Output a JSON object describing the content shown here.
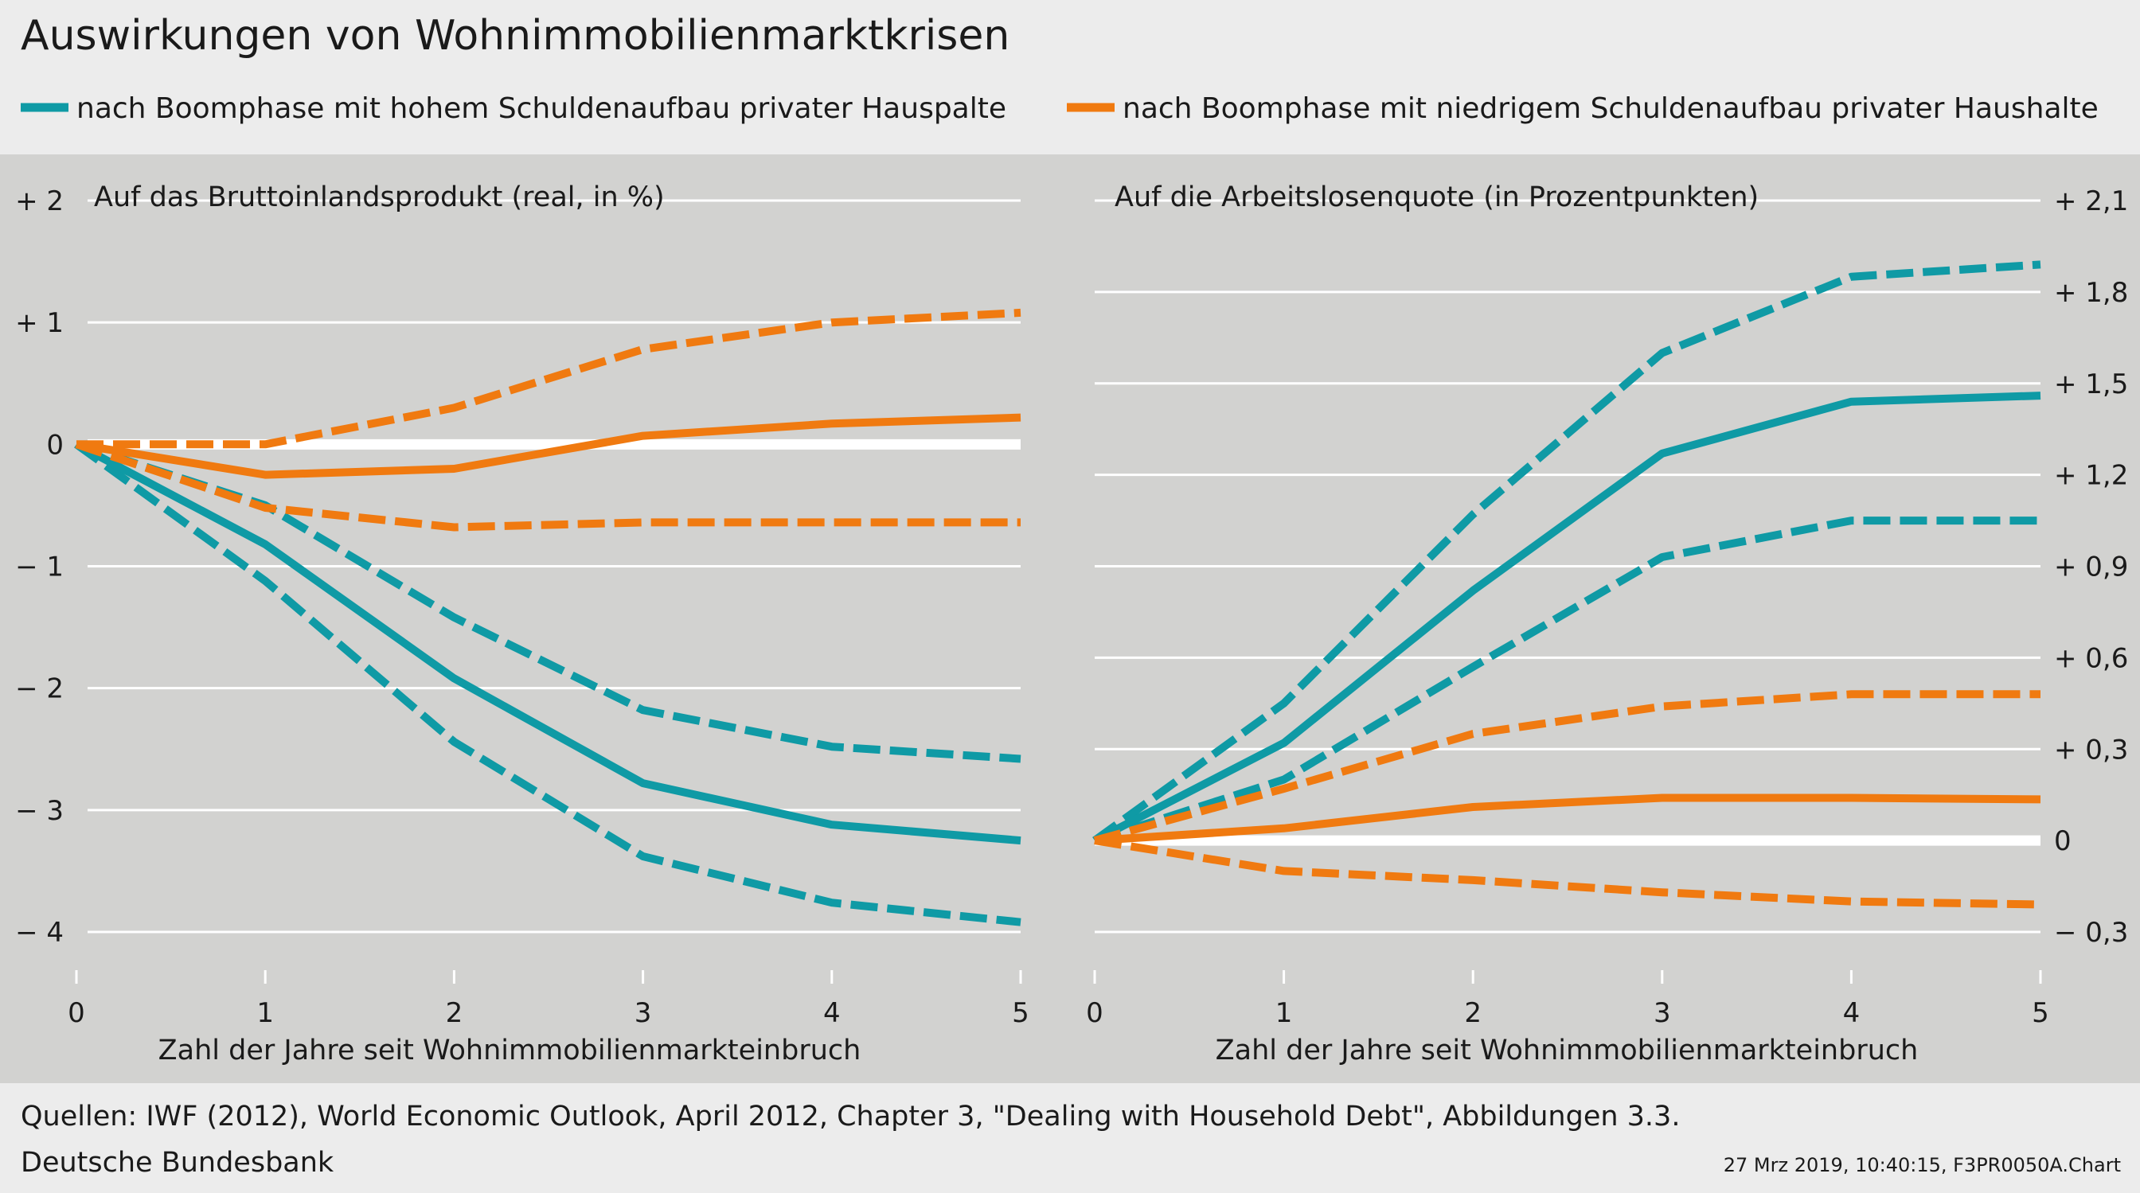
{
  "title": "Auswirkungen von Wohnimmobilienmarktkrisen",
  "legend": [
    {
      "label": "nach Boomphase mit hohem Schuldenaufbau privater Hauspalte",
      "color": "#0f9aa5"
    },
    {
      "label": "nach Boomphase mit niedrigem Schuldenaufbau privater Haushalte",
      "color": "#f07a10"
    }
  ],
  "colors": {
    "teal": "#0f9aa5",
    "orange": "#f07a10",
    "panel_bg": "#d2d2d0",
    "page_bg": "#ececec"
  },
  "chart_data": [
    {
      "type": "line",
      "title": "Auf das Bruttoinlandsprodukt (real, in %)",
      "xlabel": "Zahl der Jahre seit Wohnimmobilienmarkteinbruch",
      "ylabel": "",
      "x": [
        0,
        1,
        2,
        3,
        4,
        5
      ],
      "xlim": [
        0,
        5
      ],
      "ylim": [
        -4,
        2
      ],
      "y_ticks": [
        2,
        1,
        0,
        -1,
        -2,
        -3,
        -4
      ],
      "y_tick_labels": [
        "+ 2",
        "+ 1",
        "0",
        "− 1",
        "− 2",
        "− 3",
        "− 4"
      ],
      "y_axis_side": "left",
      "grid": true,
      "series": [
        {
          "group": "high",
          "style": "dashed",
          "values": [
            0,
            -1.12,
            -2.44,
            -3.38,
            -3.76,
            -3.92
          ]
        },
        {
          "group": "high",
          "style": "solid",
          "values": [
            0,
            -0.82,
            -1.92,
            -2.78,
            -3.12,
            -3.25
          ]
        },
        {
          "group": "high",
          "style": "dashed",
          "values": [
            0,
            -0.5,
            -1.42,
            -2.18,
            -2.48,
            -2.58
          ]
        },
        {
          "group": "low",
          "style": "dashed",
          "values": [
            0,
            -0.52,
            -0.68,
            -0.64,
            -0.64,
            -0.64
          ]
        },
        {
          "group": "low",
          "style": "solid",
          "values": [
            0,
            -0.25,
            -0.2,
            0.07,
            0.17,
            0.22
          ]
        },
        {
          "group": "low",
          "style": "dashed",
          "values": [
            0,
            0,
            0.3,
            0.78,
            1.0,
            1.08
          ]
        }
      ]
    },
    {
      "type": "line",
      "title": "Auf die Arbeitslosenquote (in Prozentpunkten)",
      "xlabel": "Zahl der Jahre seit Wohnimmobilienmarkteinbruch",
      "ylabel": "",
      "x": [
        0,
        1,
        2,
        3,
        4,
        5
      ],
      "xlim": [
        0,
        5
      ],
      "ylim": [
        -0.3,
        2.1
      ],
      "y_ticks": [
        2.1,
        1.8,
        1.5,
        1.2,
        0.9,
        0.6,
        0.3,
        0,
        -0.3
      ],
      "y_tick_labels": [
        "+ 2,1",
        "+ 1,8",
        "+ 1,5",
        "+ 1,2",
        "+ 0,9",
        "+ 0,6",
        "+ 0,3",
        "0",
        "− 0,3"
      ],
      "y_axis_side": "right",
      "grid": true,
      "series": [
        {
          "group": "high",
          "style": "dashed",
          "values": [
            0,
            0.45,
            1.07,
            1.6,
            1.85,
            1.89
          ]
        },
        {
          "group": "high",
          "style": "solid",
          "values": [
            0,
            0.32,
            0.82,
            1.27,
            1.44,
            1.46
          ]
        },
        {
          "group": "high",
          "style": "dashed",
          "values": [
            0,
            0.2,
            0.57,
            0.93,
            1.05,
            1.05
          ]
        },
        {
          "group": "low",
          "style": "dashed",
          "values": [
            0,
            0.17,
            0.35,
            0.44,
            0.48,
            0.48
          ]
        },
        {
          "group": "low",
          "style": "solid",
          "values": [
            0,
            0.04,
            0.11,
            0.14,
            0.14,
            0.135
          ]
        },
        {
          "group": "low",
          "style": "dashed",
          "values": [
            0,
            -0.1,
            -0.13,
            -0.17,
            -0.2,
            -0.21
          ]
        }
      ]
    }
  ],
  "source_line": "Quellen: IWF (2012), World Economic Outlook, April 2012, Chapter 3, \"Dealing with Household Debt\", Abbildungen 3.3.",
  "publisher": "Deutsche Bundesbank",
  "stamp": "27 Mrz 2019, 10:40:15, F3PR0050A.Chart"
}
